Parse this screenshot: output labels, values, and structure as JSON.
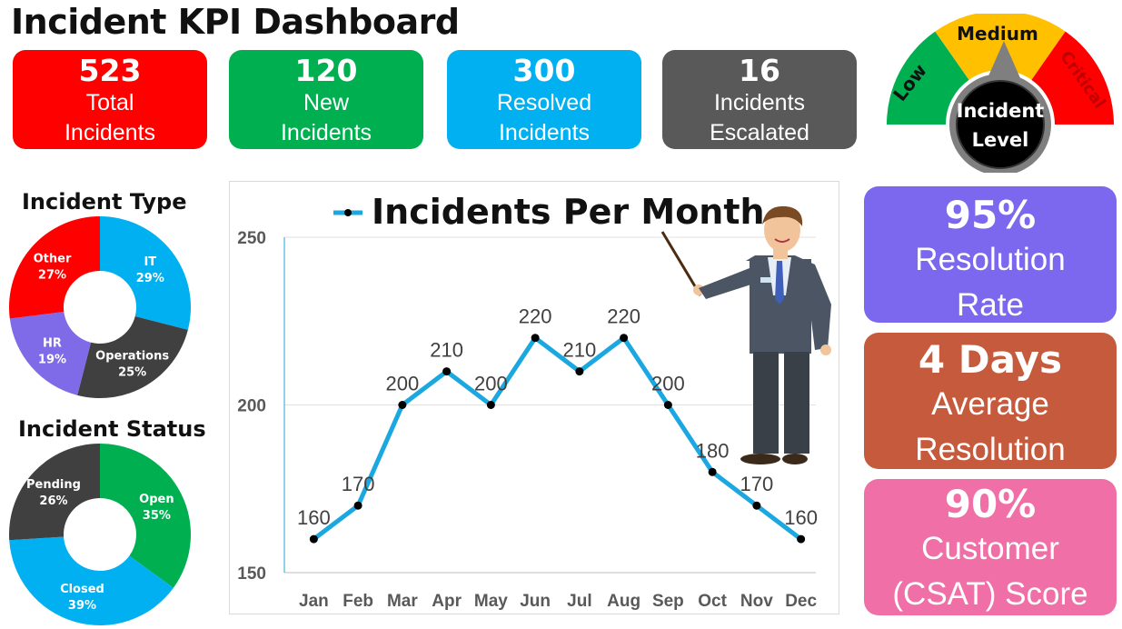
{
  "title": "Incident KPI Dashboard",
  "kpis": [
    {
      "value": "523",
      "label": "Total\nIncidents",
      "color": "#ff0000"
    },
    {
      "value": "120",
      "label": "New\nIncidents",
      "color": "#00b050"
    },
    {
      "value": "300",
      "label": "Resolved\nIncidents",
      "color": "#00b0f0"
    },
    {
      "value": "16",
      "label": "Incidents\nEscalated",
      "color": "#595959"
    }
  ],
  "gauge": {
    "low": "Low",
    "medium": "Medium",
    "critical": "Critical",
    "center_line1": "Incident",
    "center_line2": "Level",
    "colors": {
      "low": "#00b050",
      "medium": "#ffc000",
      "critical": "#ff0000"
    }
  },
  "incident_type": {
    "title": "Incident Type",
    "slices": [
      {
        "name": "IT",
        "pct": "29%",
        "value": 29,
        "color": "#00b0f0"
      },
      {
        "name": "Operations",
        "pct": "25%",
        "value": 25,
        "color": "#404040"
      },
      {
        "name": "HR",
        "pct": "19%",
        "value": 19,
        "color": "#7f6be8"
      },
      {
        "name": "Other",
        "pct": "27%",
        "value": 27,
        "color": "#ff0000"
      }
    ]
  },
  "incident_status": {
    "title": "Incident Status",
    "slices": [
      {
        "name": "Open",
        "pct": "35%",
        "value": 35,
        "color": "#00b050"
      },
      {
        "name": "Closed",
        "pct": "39%",
        "value": 39,
        "color": "#00b0f0"
      },
      {
        "name": "Pending",
        "pct": "26%",
        "value": 26,
        "color": "#404040"
      }
    ]
  },
  "chart_data": [
    {
      "type": "line",
      "title": "Incidents Per Month",
      "categories": [
        "Jan",
        "Feb",
        "Mar",
        "Apr",
        "May",
        "Jun",
        "Jul",
        "Aug",
        "Sep",
        "Oct",
        "Nov",
        "Dec"
      ],
      "series": [
        {
          "name": "Incidents Per Month",
          "values": [
            160,
            170,
            200,
            210,
            200,
            220,
            210,
            220,
            200,
            180,
            170,
            160
          ]
        }
      ],
      "ylim": [
        150,
        250
      ],
      "yticks": [
        150,
        200,
        250
      ],
      "grid": true,
      "legend": "top",
      "line_color": "#1ba7e0"
    },
    {
      "type": "pie",
      "title": "Incident Type",
      "categories": [
        "IT",
        "Operations",
        "HR",
        "Other"
      ],
      "values": [
        29,
        25,
        19,
        27
      ]
    },
    {
      "type": "pie",
      "title": "Incident Status",
      "categories": [
        "Open",
        "Closed",
        "Pending"
      ],
      "values": [
        35,
        39,
        26
      ]
    }
  ],
  "cards": [
    {
      "big": "95%",
      "text": "Resolution\nRate",
      "color": "#7b68ee"
    },
    {
      "big": "4 Days",
      "text": "Average\nResolution",
      "color": "#c65a3d"
    },
    {
      "big": "90%",
      "text": "Customer\n(CSAT) Score",
      "color": "#ef6fa6"
    }
  ]
}
